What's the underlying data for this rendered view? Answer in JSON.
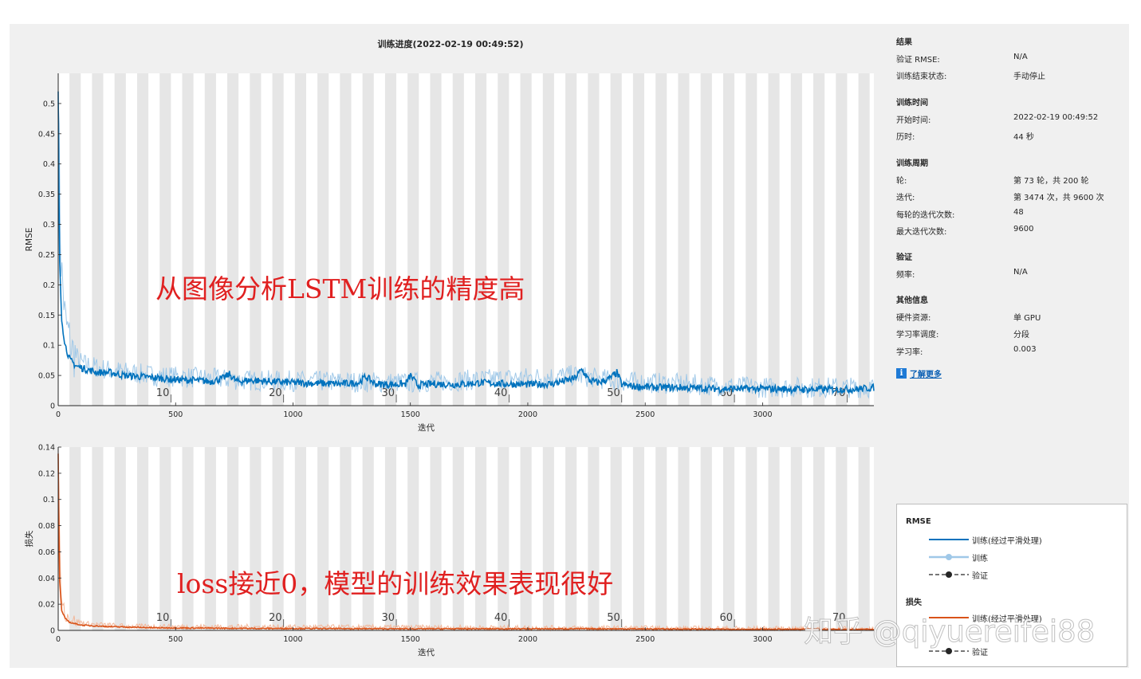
{
  "figure_title": "训练进度(2022-02-19 00:49:52)",
  "results": {
    "heading": "结果",
    "rows": [
      {
        "key": "验证 RMSE:",
        "value": "N/A"
      },
      {
        "key": "训练结束状态:",
        "value": "手动停止"
      }
    ]
  },
  "training_time": {
    "heading": "训练时间",
    "rows": [
      {
        "key": "开始时间:",
        "value": "2022-02-19 00:49:52"
      },
      {
        "key": "历时:",
        "value": "44 秒"
      }
    ]
  },
  "training_cycle": {
    "heading": "训练周期",
    "rows": [
      {
        "key": "轮:",
        "value": "第 73 轮，共 200 轮"
      },
      {
        "key": "迭代:",
        "value": "第 3474 次，共 9600 次"
      },
      {
        "key": "每轮的迭代次数:",
        "value": "48"
      },
      {
        "key": "最大迭代次数:",
        "value": "9600"
      }
    ]
  },
  "validation": {
    "heading": "验证",
    "rows": [
      {
        "key": "频率:",
        "value": "N/A"
      }
    ]
  },
  "other_info": {
    "heading": "其他信息",
    "rows": [
      {
        "key": "硬件资源:",
        "value": "单 GPU"
      },
      {
        "key": "学习率调度:",
        "value": "分段"
      },
      {
        "key": "学习率:",
        "value": "0.003"
      }
    ]
  },
  "learn_more": "了解更多",
  "legend": {
    "rmse_heading": "RMSE",
    "loss_heading": "损失",
    "items_rmse": [
      {
        "label": "训练(经过平滑处理)",
        "style": "smooth",
        "color": "#0072bd"
      },
      {
        "label": "训练",
        "style": "raw",
        "color": "#9fc8e8"
      },
      {
        "label": "验证",
        "style": "val",
        "color": "#262626"
      }
    ],
    "items_loss": [
      {
        "label": "训练(经过平滑处理)",
        "style": "smooth",
        "color": "#d95319"
      },
      {
        "label": "验证",
        "style": "val",
        "color": "#262626"
      }
    ]
  },
  "annotations": {
    "top": "从图像分析LSTM训练的精度高",
    "bottom": "loss接近0，模型的训练效果表现很好"
  },
  "watermark": "知乎 @qiyuereifei88",
  "colors": {
    "rmse_smooth": "#0072bd",
    "rmse_raw": "#9fc8e8",
    "loss_smooth": "#d95319",
    "loss_raw": "#f2b79a",
    "annotation": "#e02020",
    "epoch_band": "#e6e6e6"
  },
  "chart_data": [
    {
      "type": "line",
      "xlabel": "迭代",
      "ylabel": "RMSE",
      "xlim": [
        0,
        3474
      ],
      "ylim": [
        0,
        0.55
      ],
      "xticks": [
        0,
        500,
        1000,
        1500,
        2000,
        2500,
        3000
      ],
      "yticks": [
        0,
        0.05,
        0.1,
        0.15,
        0.2,
        0.25,
        0.3,
        0.35,
        0.4,
        0.45,
        0.5
      ],
      "epoch_labels": [
        10,
        20,
        30,
        40,
        50,
        60,
        70
      ],
      "iterations_per_epoch": 48,
      "series": [
        {
          "name": "训练(经过平滑处理)",
          "x": [
            0,
            5,
            15,
            30,
            50,
            80,
            120,
            170,
            220,
            280,
            350,
            420,
            500,
            580,
            650,
            700,
            730,
            760,
            820,
            900,
            1000,
            1100,
            1200,
            1280,
            1310,
            1350,
            1420,
            1480,
            1500,
            1530,
            1600,
            1700,
            1800,
            1900,
            2000,
            2100,
            2200,
            2230,
            2260,
            2300,
            2350,
            2380,
            2400,
            2450,
            2550,
            2650,
            2800,
            3000,
            3200,
            3400,
            3474
          ],
          "y": [
            0.52,
            0.25,
            0.14,
            0.1,
            0.075,
            0.065,
            0.06,
            0.055,
            0.055,
            0.05,
            0.048,
            0.046,
            0.043,
            0.042,
            0.04,
            0.045,
            0.052,
            0.04,
            0.042,
            0.04,
            0.038,
            0.037,
            0.036,
            0.038,
            0.048,
            0.036,
            0.035,
            0.036,
            0.05,
            0.034,
            0.036,
            0.035,
            0.038,
            0.036,
            0.035,
            0.036,
            0.045,
            0.06,
            0.042,
            0.038,
            0.045,
            0.055,
            0.035,
            0.032,
            0.03,
            0.03,
            0.028,
            0.028,
            0.027,
            0.027,
            0.03
          ]
        },
        {
          "name": "训练",
          "x": [
            0,
            10,
            30,
            60,
            100,
            200,
            400,
            800,
            1500,
            2200,
            2400,
            3000,
            3474
          ],
          "y": [
            0.55,
            0.25,
            0.14,
            0.09,
            0.07,
            0.06,
            0.05,
            0.042,
            0.038,
            0.05,
            0.04,
            0.03,
            0.03
          ]
        }
      ]
    },
    {
      "type": "line",
      "xlabel": "迭代",
      "ylabel": "损失",
      "xlim": [
        0,
        3474
      ],
      "ylim": [
        0,
        0.14
      ],
      "xticks": [
        0,
        500,
        1000,
        1500,
        2000,
        2500,
        3000
      ],
      "yticks": [
        0,
        0.02,
        0.04,
        0.06,
        0.08,
        0.1,
        0.12,
        0.14
      ],
      "epoch_labels": [
        10,
        20,
        30,
        40,
        50,
        60,
        70
      ],
      "iterations_per_epoch": 48,
      "series": [
        {
          "name": "训练(经过平滑处理)",
          "x": [
            0,
            5,
            15,
            30,
            50,
            100,
            200,
            400,
            800,
            1500,
            2300,
            3000,
            3474
          ],
          "y": [
            0.135,
            0.04,
            0.015,
            0.009,
            0.006,
            0.004,
            0.003,
            0.002,
            0.0015,
            0.0012,
            0.0012,
            0.0008,
            0.0008
          ]
        },
        {
          "name": "训练",
          "x": [
            0,
            10,
            30,
            60,
            120,
            300,
            3474
          ],
          "y": [
            0.14,
            0.03,
            0.012,
            0.008,
            0.005,
            0.003,
            0.001
          ]
        }
      ]
    }
  ]
}
